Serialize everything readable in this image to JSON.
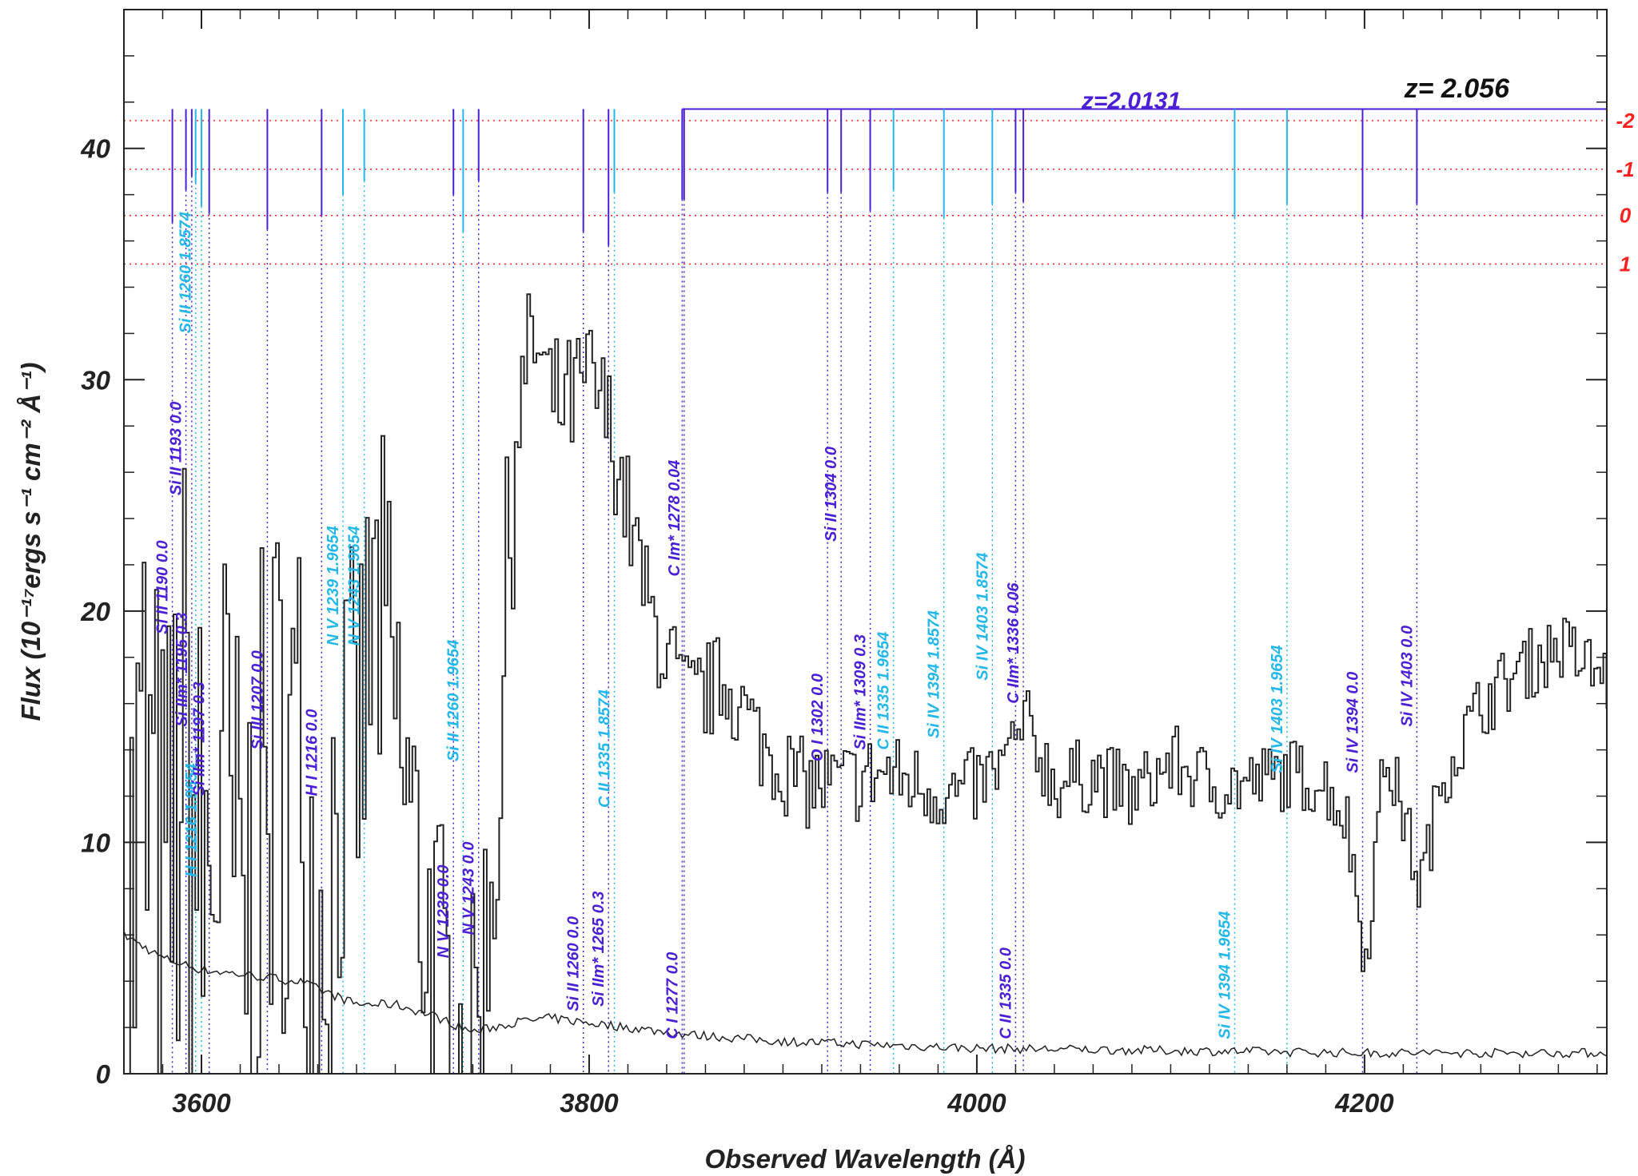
{
  "chart_data": {
    "type": "line",
    "title": "",
    "xlabel": "Observed Wavelength (Å)",
    "ylabel": "Flux (10⁻¹⁷ergs s⁻¹ cm⁻² Å⁻¹)",
    "xlim": [
      3560,
      4325
    ],
    "ylim": [
      0,
      46
    ],
    "x_ticks": [
      3600,
      3800,
      4000,
      4200
    ],
    "y_ticks": [
      0,
      10,
      20,
      30,
      40
    ],
    "grid": false,
    "colors": {
      "spectrum": "#222222",
      "system_a": "#4b1fd6",
      "system_b": "#24b8ea",
      "sigma": "#ff2020",
      "z_main": "#111111"
    },
    "spectrum_anchors": [
      [
        3560,
        4
      ],
      [
        3570,
        12
      ],
      [
        3580,
        5
      ],
      [
        3590,
        14
      ],
      [
        3600,
        7
      ],
      [
        3610,
        12
      ],
      [
        3620,
        6
      ],
      [
        3630,
        10
      ],
      [
        3640,
        14
      ],
      [
        3650,
        13
      ],
      [
        3660,
        6
      ],
      [
        3670,
        12
      ],
      [
        3680,
        14
      ],
      [
        3690,
        20
      ],
      [
        3700,
        15
      ],
      [
        3710,
        9
      ],
      [
        3720,
        5
      ],
      [
        3730,
        1.5
      ],
      [
        3740,
        2
      ],
      [
        3750,
        9
      ],
      [
        3755,
        16
      ],
      [
        3760,
        27
      ],
      [
        3770,
        32
      ],
      [
        3780,
        29
      ],
      [
        3790,
        29
      ],
      [
        3800,
        30
      ],
      [
        3810,
        28
      ],
      [
        3820,
        24
      ],
      [
        3830,
        20
      ],
      [
        3840,
        18
      ],
      [
        3850,
        16
      ],
      [
        3870,
        17
      ],
      [
        3890,
        14
      ],
      [
        3910,
        12.5
      ],
      [
        3930,
        12.5
      ],
      [
        3950,
        13
      ],
      [
        3970,
        12.5
      ],
      [
        3990,
        12
      ],
      [
        4010,
        13
      ],
      [
        4025,
        15
      ],
      [
        4040,
        12.5
      ],
      [
        4060,
        13
      ],
      [
        4080,
        12
      ],
      [
        4100,
        13.5
      ],
      [
        4120,
        12.5
      ],
      [
        4140,
        12.5
      ],
      [
        4160,
        13
      ],
      [
        4180,
        12.5
      ],
      [
        4190,
        11
      ],
      [
        4200,
        5
      ],
      [
        4210,
        14
      ],
      [
        4220,
        11
      ],
      [
        4228,
        8
      ],
      [
        4240,
        13
      ],
      [
        4260,
        16
      ],
      [
        4280,
        17.5
      ],
      [
        4300,
        18.5
      ],
      [
        4325,
        17
      ]
    ],
    "error_anchors": [
      [
        3560,
        6
      ],
      [
        3580,
        5
      ],
      [
        3600,
        4.5
      ],
      [
        3650,
        4
      ],
      [
        3680,
        3
      ],
      [
        3700,
        3
      ],
      [
        3720,
        2.5
      ],
      [
        3740,
        1.8
      ],
      [
        3760,
        2.2
      ],
      [
        3780,
        2.4
      ],
      [
        3800,
        2.2
      ],
      [
        3850,
        1.7
      ],
      [
        3900,
        1.4
      ],
      [
        4000,
        1.1
      ],
      [
        4100,
        1.0
      ],
      [
        4200,
        0.9
      ],
      [
        4325,
        0.9
      ]
    ],
    "sigma_levels": [
      {
        "label": "-2",
        "value": 41.2
      },
      {
        "label": "-1",
        "value": 39.1
      },
      {
        "label": "0",
        "value": 37.1
      },
      {
        "label": "1",
        "value": 35.0
      }
    ],
    "z_main_label": "z=  2.056",
    "z_system_label": "z=2.0131",
    "z_system_bar": {
      "x_start": 3848,
      "x_end": 4325,
      "y": 41.7
    },
    "absorption_lines": [
      {
        "label": "Si II 1190 0.0",
        "x": 3585,
        "sys": "a",
        "tick_bottom": 36.8,
        "label_y": 19
      },
      {
        "label": "Si II 1193 0.0",
        "x": 3592,
        "sys": "a",
        "tick_bottom": 38.2,
        "label_y": 25
      },
      {
        "label": "Si IIm* 1195 0.3",
        "x": 3595,
        "sys": "a",
        "tick_bottom": 38.8,
        "label_y": 15
      },
      {
        "label": "Si II 1260 1.8574",
        "x": 3597,
        "sys": "b",
        "tick_bottom": 38.5,
        "label_y": 32
      },
      {
        "label": "H I 1216 1.9654",
        "x": 3600,
        "sys": "b",
        "tick_bottom": 37.5,
        "label_y": 8.5
      },
      {
        "label": "Si IIm* 1197 0.3",
        "x": 3604,
        "sys": "a",
        "tick_bottom": 37.2,
        "label_y": 12
      },
      {
        "label": "Si III 1207 0.0",
        "x": 3634,
        "sys": "a",
        "tick_bottom": 36.5,
        "label_y": 14
      },
      {
        "label": "H I 1216 0.0",
        "x": 3662,
        "sys": "a",
        "tick_bottom": 37.1,
        "label_y": 12
      },
      {
        "label": "N V 1239 1.9654",
        "x": 3673,
        "sys": "b",
        "tick_bottom": 38.0,
        "label_y": 18.5
      },
      {
        "label": "N V 1243 1.9654",
        "x": 3684,
        "sys": "b",
        "tick_bottom": 38.6,
        "label_y": 18.5
      },
      {
        "label": "N V 1239 0.0",
        "x": 3730,
        "sys": "a",
        "tick_bottom": 38.0,
        "label_y": 5
      },
      {
        "label": "Si II 1260 1.9654",
        "x": 3735,
        "sys": "b",
        "tick_bottom": 36.4,
        "label_y": 13.5
      },
      {
        "label": "N V 1243 0.0",
        "x": 3743,
        "sys": "a",
        "tick_bottom": 38.6,
        "label_y": 6
      },
      {
        "label": "Si II 1260 0.0",
        "x": 3797,
        "sys": "a",
        "tick_bottom": 36.4,
        "label_y": 2.7
      },
      {
        "label": "Si IIm* 1265 0.3",
        "x": 3810,
        "sys": "a",
        "tick_bottom": 35.8,
        "label_y": 2.9
      },
      {
        "label": "C II 1335 1.8574",
        "x": 3813,
        "sys": "b",
        "tick_bottom": 38.1,
        "label_y": 11.5
      },
      {
        "label": "C I 1277 0.0",
        "x": 3848,
        "sys": "a",
        "tick_bottom": 37.8,
        "label_y": 1.5
      },
      {
        "label": "C Im* 1278 0.04",
        "x": 3849,
        "sys": "a",
        "tick_bottom": 37.8,
        "label_y": 21.5
      },
      {
        "label": "O I 1302 0.0",
        "x": 3923,
        "sys": "a",
        "tick_bottom": 38.1,
        "label_y": 13.5
      },
      {
        "label": "Si II 1304 0.0",
        "x": 3930,
        "sys": "a",
        "tick_bottom": 38.1,
        "label_y": 23
      },
      {
        "label": "Si IIm* 1309 0.3",
        "x": 3945,
        "sys": "a",
        "tick_bottom": 37.3,
        "label_y": 14
      },
      {
        "label": "C II 1335 1.9654",
        "x": 3957,
        "sys": "b",
        "tick_bottom": 38.2,
        "label_y": 14
      },
      {
        "label": "Si IV 1394 1.8574",
        "x": 3983,
        "sys": "b",
        "tick_bottom": 37.0,
        "label_y": 14.5
      },
      {
        "label": "Si IV 1403 1.8574",
        "x": 4008,
        "sys": "b",
        "tick_bottom": 37.6,
        "label_y": 17
      },
      {
        "label": "C II 1335 0.0",
        "x": 4020,
        "sys": "a",
        "tick_bottom": 38.1,
        "label_y": 1.5
      },
      {
        "label": "C IIm* 1336 0.06",
        "x": 4024,
        "sys": "a",
        "tick_bottom": 37.7,
        "label_y": 16
      },
      {
        "label": "Si IV 1394 1.9654",
        "x": 4133,
        "sys": "b",
        "tick_bottom": 37.0,
        "label_y": 1.5
      },
      {
        "label": "Si IV 1403 1.9654",
        "x": 4160,
        "sys": "b",
        "tick_bottom": 37.6,
        "label_y": 13
      },
      {
        "label": "Si IV 1394 0.0",
        "x": 4199,
        "sys": "a",
        "tick_bottom": 37.0,
        "label_y": 13
      },
      {
        "label": "Si IV 1403 0.0",
        "x": 4227,
        "sys": "a",
        "tick_bottom": 37.6,
        "label_y": 15
      }
    ]
  }
}
